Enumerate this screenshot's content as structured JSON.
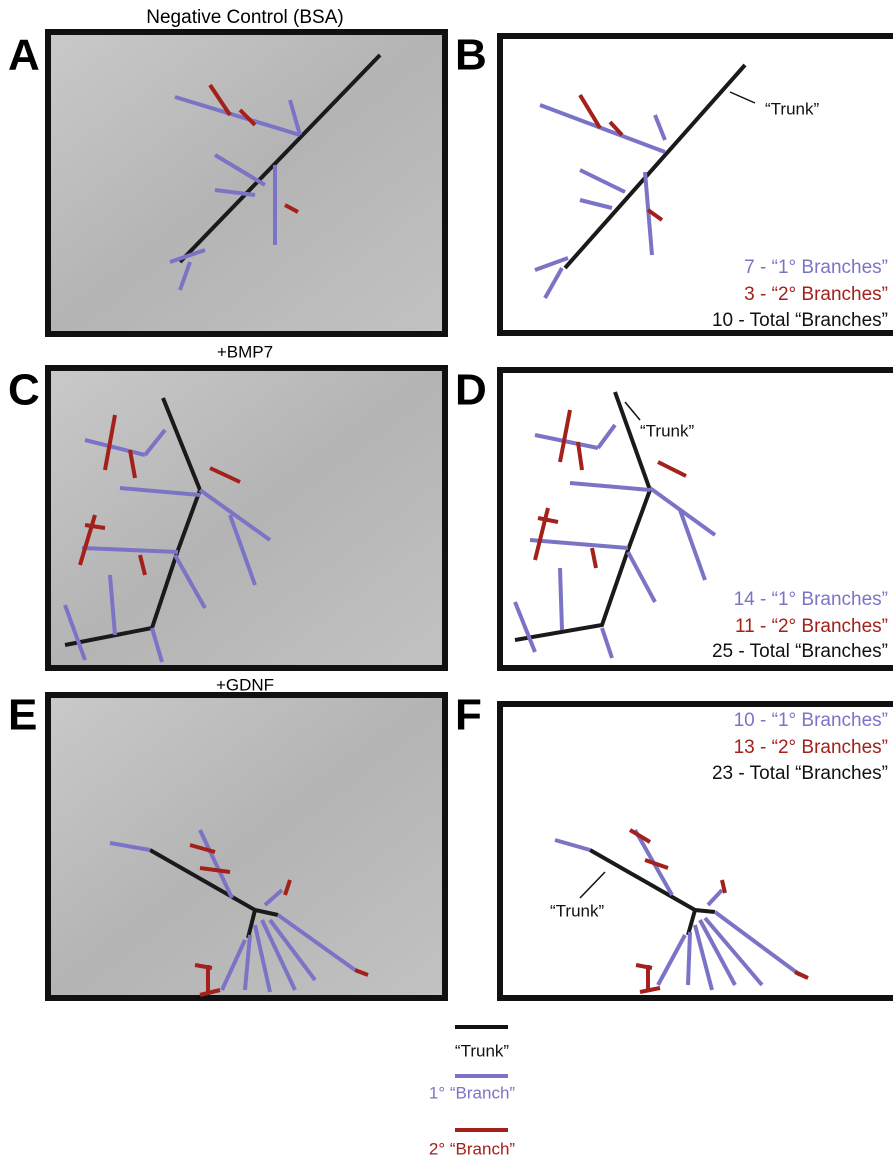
{
  "rows": [
    {
      "title": "Negative Control (BSA)",
      "image_panel": "A",
      "tracing_panel": "B",
      "trunk_label": "“Trunk”",
      "counts": [
        "7 - “1° Branches”",
        "3 - “2° Branches”",
        "10 - Total “Branches”"
      ]
    },
    {
      "title": "+BMP7",
      "image_panel": "C",
      "tracing_panel": "D",
      "trunk_label": "“Trunk”",
      "counts": [
        "14 - “1° Branches”",
        "11 - “2° Branches”",
        "25 - Total “Branches”"
      ]
    },
    {
      "title": "+GDNF",
      "image_panel": "E",
      "tracing_panel": "F",
      "trunk_label": "“Trunk”",
      "counts": [
        "10 - “1° Branches”",
        "13 - “2° Branches”",
        "23 - Total “Branches”"
      ]
    }
  ],
  "legend": [
    "“Trunk”",
    "1° “Branch”",
    "2° “Branch”"
  ]
}
